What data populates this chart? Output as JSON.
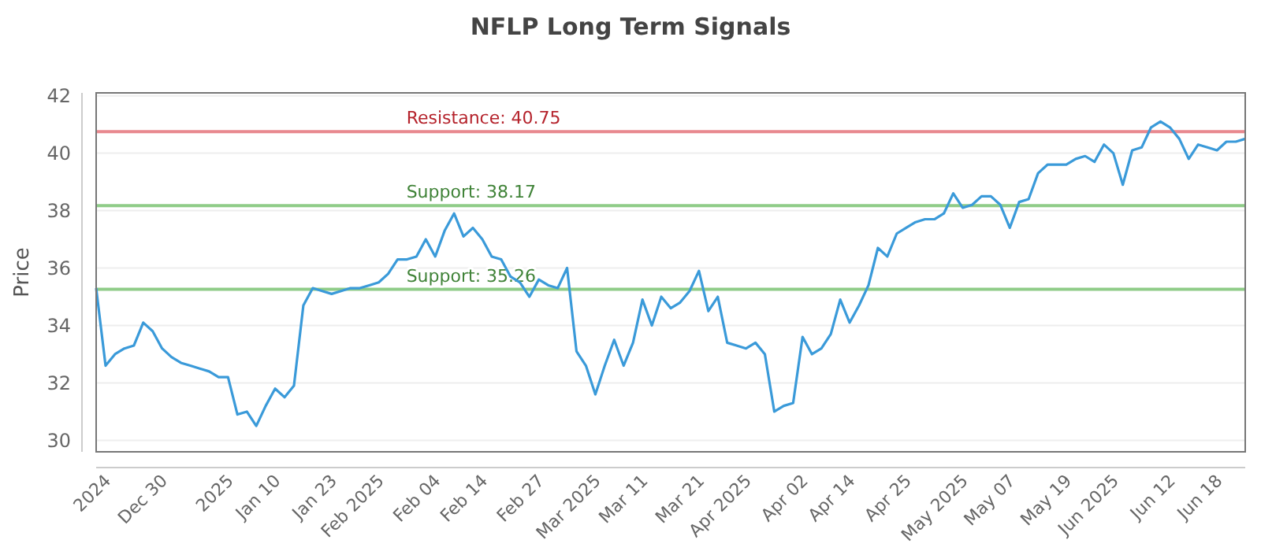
{
  "chart_data": {
    "type": "line",
    "title": "NFLP Long Term Signals",
    "ylabel": "Price",
    "categories": [
      null,
      "2024",
      null,
      null,
      null,
      null,
      null,
      "Dec 30",
      null,
      null,
      null,
      null,
      null,
      null,
      "2025",
      null,
      null,
      null,
      null,
      "Jan 10",
      null,
      null,
      null,
      null,
      null,
      "Jan 23",
      null,
      null,
      null,
      null,
      "Feb 2025",
      null,
      null,
      null,
      null,
      null,
      "Feb 04",
      null,
      null,
      null,
      null,
      "Feb 14",
      null,
      null,
      null,
      null,
      null,
      "Feb 27",
      null,
      null,
      null,
      null,
      null,
      "Mar 2025",
      null,
      null,
      null,
      null,
      "Mar 11",
      null,
      null,
      null,
      null,
      null,
      "Mar 21",
      null,
      null,
      null,
      null,
      "Apr 2025",
      null,
      null,
      null,
      null,
      null,
      "Apr 02",
      null,
      null,
      null,
      null,
      "Apr 14",
      null,
      null,
      null,
      null,
      null,
      "Apr 25",
      null,
      null,
      null,
      null,
      null,
      "May 2025",
      null,
      null,
      null,
      null,
      "May 07",
      null,
      null,
      null,
      null,
      null,
      "May 19",
      null,
      null,
      null,
      null,
      "Jun 2025",
      null,
      null,
      null,
      null,
      null,
      "Jun 12",
      null,
      null,
      null,
      null,
      "Jun 18",
      null,
      null,
      null
    ],
    "series": [
      {
        "color": "#3a9ad9",
        "values": [
          35.3,
          32.6,
          33.0,
          33.2,
          33.3,
          34.1,
          33.8,
          33.2,
          32.9,
          32.7,
          32.6,
          32.5,
          32.4,
          32.2,
          32.2,
          30.9,
          31.0,
          30.5,
          31.2,
          31.8,
          31.5,
          31.9,
          34.7,
          35.3,
          35.2,
          35.1,
          35.2,
          35.3,
          35.3,
          35.4,
          35.5,
          35.8,
          36.3,
          36.3,
          36.4,
          37.0,
          36.4,
          37.3,
          37.9,
          37.1,
          37.4,
          37.0,
          36.4,
          36.3,
          35.7,
          35.5,
          35.0,
          35.6,
          35.4,
          35.3,
          36.0,
          33.1,
          32.6,
          31.6,
          32.6,
          33.5,
          32.6,
          33.4,
          34.9,
          34.0,
          35.0,
          34.6,
          34.8,
          35.2,
          35.9,
          34.5,
          35.0,
          33.4,
          33.3,
          33.2,
          33.4,
          33.0,
          31.0,
          31.2,
          31.3,
          33.6,
          33.0,
          33.2,
          33.7,
          34.9,
          34.1,
          34.7,
          35.4,
          36.7,
          36.4,
          37.2,
          37.4,
          37.6,
          37.7,
          37.7,
          37.9,
          38.6,
          38.1,
          38.2,
          38.5,
          38.5,
          38.2,
          37.4,
          38.3,
          38.4,
          39.3,
          39.6,
          39.6,
          39.6,
          39.8,
          39.9,
          39.7,
          40.3,
          40.0,
          38.9,
          40.1,
          40.2,
          40.9,
          41.1,
          40.9,
          40.5,
          39.8,
          40.3,
          40.2,
          40.1,
          40.4,
          40.4,
          40.5
        ]
      }
    ],
    "ylim": [
      29.6,
      42.1
    ],
    "yticks": [
      30,
      32,
      34,
      36,
      38,
      40,
      42
    ],
    "grid": "y",
    "marker": "none",
    "line_style": "solid",
    "ref_lines": [
      {
        "axis": "y",
        "value": 40.75,
        "label": "Resistance: 40.75",
        "color": "#e8898f"
      },
      {
        "axis": "y",
        "value": 38.17,
        "label": "Support: 38.17",
        "color": "#8fcc88"
      },
      {
        "axis": "y",
        "value": 35.26,
        "label": "Support: 35.26",
        "color": "#8fcc88"
      }
    ]
  }
}
